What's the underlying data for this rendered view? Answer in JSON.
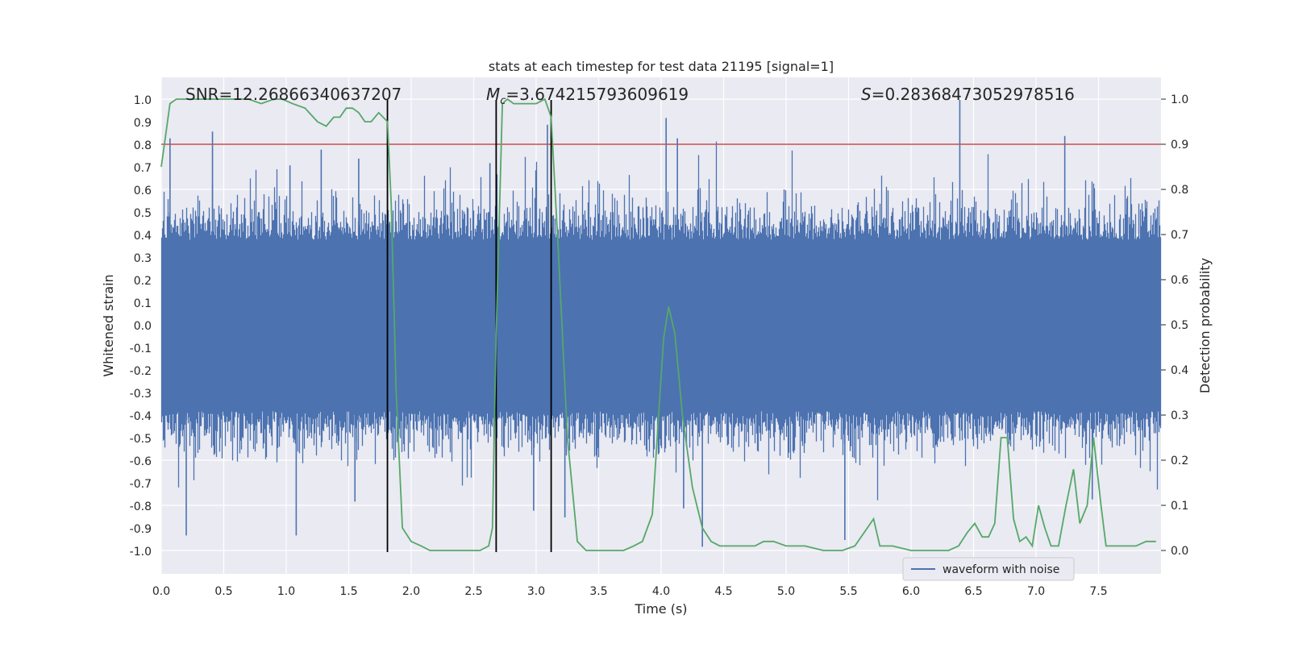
{
  "chart_data": {
    "type": "line",
    "title": "stats at each timestep for test data 21195 [signal=1]",
    "xlabel": "Time (s)",
    "ylabel": "Whitened strain",
    "y2label": "Detection probability",
    "xlim": [
      0.0,
      8.0
    ],
    "ylim": [
      -1.1,
      1.1
    ],
    "y2lim": [
      -0.05,
      1.05
    ],
    "xticks": [
      "0.0",
      "0.5",
      "1.0",
      "1.5",
      "2.0",
      "2.5",
      "3.0",
      "3.5",
      "4.0",
      "4.5",
      "5.0",
      "5.5",
      "6.0",
      "6.5",
      "7.0",
      "7.5"
    ],
    "yticks": [
      "1.0",
      "0.9",
      "0.8",
      "0.7",
      "0.6",
      "0.5",
      "0.4",
      "0.3",
      "0.2",
      "0.1",
      "0.0",
      "-0.1",
      "-0.2",
      "-0.3",
      "-0.4",
      "-0.5",
      "-0.6",
      "-0.7",
      "-0.8",
      "-0.9",
      "-1.0"
    ],
    "y2ticks": [
      "1.0",
      "0.9",
      "0.8",
      "0.7",
      "0.6",
      "0.5",
      "0.4",
      "0.3",
      "0.2",
      "0.1",
      "0.0"
    ],
    "grid": true,
    "legend": {
      "placement": "lower-right",
      "entries": [
        "waveform with noise"
      ]
    },
    "annotations": {
      "snr": "SNR=12.26866340637207",
      "mc_symbol": "M",
      "mc_sub": "c",
      "mc_value": "=3.674215793609619",
      "s_symbol": "S",
      "s_value": "=0.28368473052978516"
    },
    "threshold": {
      "value": 0.9,
      "axis": "right",
      "color": "#c44e52"
    },
    "vertical_lines": [
      1.81,
      2.68,
      3.12
    ],
    "strain_series": {
      "name": "waveform with noise",
      "color": "#4c72b0",
      "samples": 8000,
      "core_amplitude": 0.38,
      "peaks": [
        [
          0.07,
          0.83
        ],
        [
          0.41,
          0.86
        ],
        [
          1.03,
          0.71
        ],
        [
          1.28,
          0.78
        ],
        [
          1.58,
          0.74
        ],
        [
          2.63,
          0.72
        ],
        [
          3.09,
          0.89
        ],
        [
          4.04,
          0.92
        ],
        [
          4.13,
          0.83
        ],
        [
          6.39,
          1.0
        ],
        [
          7.23,
          0.84
        ],
        [
          0.2,
          -0.93
        ],
        [
          1.08,
          -0.93
        ],
        [
          1.55,
          -0.78
        ],
        [
          2.98,
          -0.82
        ],
        [
          3.23,
          -0.85
        ],
        [
          4.18,
          -0.81
        ],
        [
          4.33,
          -0.98
        ],
        [
          5.47,
          -0.95
        ],
        [
          7.45,
          -0.77
        ]
      ]
    },
    "detection_series": {
      "color": "#55a868",
      "x": [
        0.0,
        0.03,
        0.07,
        0.12,
        0.2,
        0.35,
        0.5,
        0.65,
        0.7,
        0.8,
        0.9,
        0.97,
        1.05,
        1.15,
        1.25,
        1.32,
        1.38,
        1.43,
        1.48,
        1.53,
        1.58,
        1.63,
        1.68,
        1.74,
        1.81,
        1.84,
        1.88,
        1.93,
        2.0,
        2.08,
        2.15,
        2.3,
        2.45,
        2.55,
        2.62,
        2.65,
        2.68,
        2.73,
        2.77,
        2.82,
        2.92,
        3.0,
        3.07,
        3.12,
        3.18,
        3.25,
        3.33,
        3.4,
        3.55,
        3.7,
        3.78,
        3.85,
        3.93,
        3.98,
        4.02,
        4.06,
        4.11,
        4.17,
        4.25,
        4.33,
        4.4,
        4.47,
        4.55,
        4.65,
        4.75,
        4.82,
        4.9,
        5.0,
        5.15,
        5.3,
        5.45,
        5.55,
        5.6,
        5.65,
        5.7,
        5.75,
        5.85,
        6.0,
        6.15,
        6.3,
        6.38,
        6.45,
        6.51,
        6.57,
        6.62,
        6.67,
        6.72,
        6.77,
        6.82,
        6.87,
        6.92,
        6.97,
        7.02,
        7.07,
        7.12,
        7.18,
        7.24,
        7.3,
        7.35,
        7.41,
        7.46,
        7.52,
        7.56,
        7.6,
        7.66,
        7.72,
        7.8,
        7.88,
        7.96
      ],
      "y": [
        0.85,
        0.91,
        0.99,
        1.0,
        1.0,
        1.0,
        1.0,
        1.0,
        1.0,
        0.99,
        1.0,
        1.0,
        0.99,
        0.98,
        0.95,
        0.94,
        0.96,
        0.96,
        0.98,
        0.98,
        0.97,
        0.95,
        0.95,
        0.97,
        0.95,
        0.77,
        0.35,
        0.05,
        0.02,
        0.01,
        0.0,
        0.0,
        0.0,
        0.0,
        0.01,
        0.05,
        0.48,
        0.99,
        1.0,
        0.99,
        0.99,
        0.99,
        1.0,
        0.96,
        0.65,
        0.25,
        0.02,
        0.0,
        0.0,
        0.0,
        0.01,
        0.02,
        0.08,
        0.3,
        0.47,
        0.54,
        0.48,
        0.3,
        0.14,
        0.05,
        0.02,
        0.01,
        0.01,
        0.01,
        0.01,
        0.02,
        0.02,
        0.01,
        0.01,
        0.0,
        0.0,
        0.01,
        0.03,
        0.05,
        0.07,
        0.01,
        0.01,
        0.0,
        0.0,
        0.0,
        0.01,
        0.04,
        0.06,
        0.03,
        0.03,
        0.06,
        0.25,
        0.25,
        0.07,
        0.02,
        0.03,
        0.01,
        0.1,
        0.05,
        0.01,
        0.01,
        0.1,
        0.18,
        0.06,
        0.1,
        0.25,
        0.1,
        0.01,
        0.01,
        0.01,
        0.01,
        0.01,
        0.02,
        0.02
      ]
    }
  }
}
